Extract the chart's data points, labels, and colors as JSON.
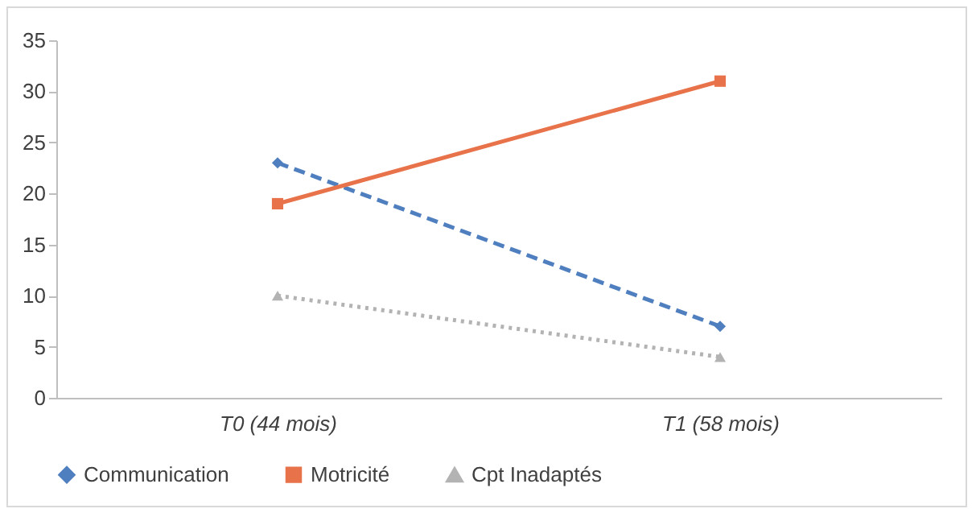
{
  "chart_data": {
    "type": "line",
    "categories": [
      "T0 (44 mois)",
      "T1 (58 mois)"
    ],
    "series": [
      {
        "name": "Communication",
        "color": "#4f7fbf",
        "values": [
          23,
          7
        ],
        "marker": "diamond",
        "line_style": "dashed"
      },
      {
        "name": "Motricité",
        "color": "#e8734a",
        "values": [
          19,
          31
        ],
        "marker": "square",
        "line_style": "solid"
      },
      {
        "name": "Cpt Inadaptés",
        "color": "#b3b3b3",
        "values": [
          10,
          4
        ],
        "marker": "triangle",
        "line_style": "dotted"
      }
    ],
    "ylim": [
      0,
      35
    ],
    "yticks": [
      0,
      5,
      10,
      15,
      20,
      25,
      30,
      35
    ],
    "grid": false,
    "legend": "bottom"
  }
}
